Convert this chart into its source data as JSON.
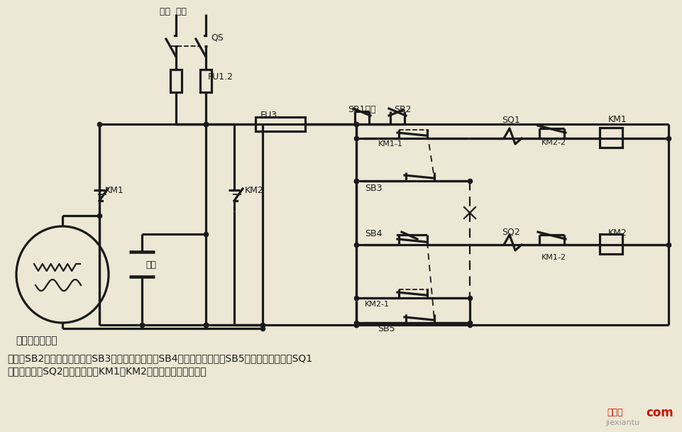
{
  "bg_color": "#ede8d5",
  "lc": "#1a1a1a",
  "lw": 2.3,
  "lw_thin": 1.3,
  "label_motor": "单相电容电动机",
  "label_capacitor": "电容",
  "desc1": "说明：SB2为上升启动按钮，SB3为上升点动按钮，SB4为下降启动按钮，SB5为下降点动按钮；SQ1",
  "desc2": "为最高限位，SQ2为最低限位。KM1、KM2可用中间继电器代替。",
  "wm_red": "接线图",
  "wm_com": "com",
  "wm_gray": "jiexiantu"
}
